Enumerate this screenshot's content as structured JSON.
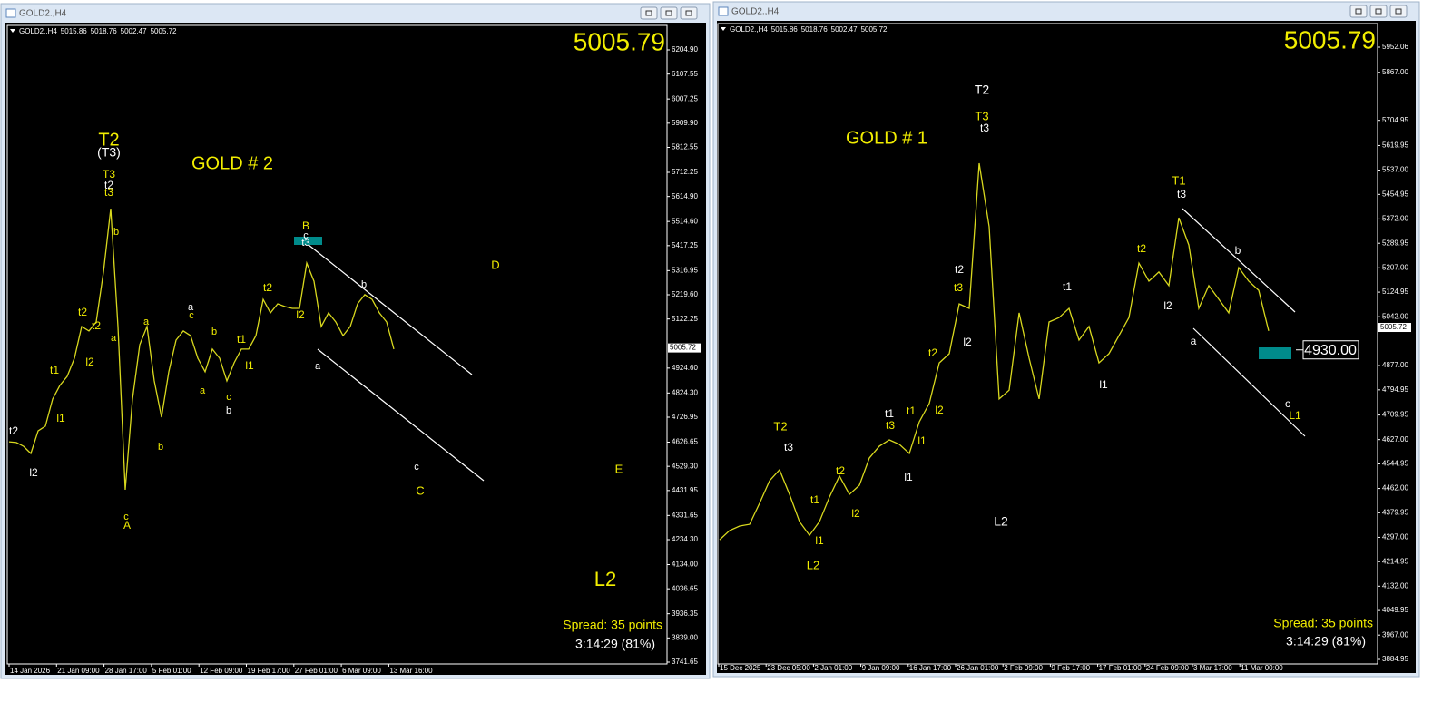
{
  "chart_data": [
    {
      "type": "line",
      "window_title": "GOLD2.,H4",
      "symbol": "GOLD2.,H4",
      "ohlc": [
        5015.86,
        5018.76,
        5002.47,
        5005.72
      ],
      "price": 5005.79,
      "price_tag": 5005.72,
      "spread": "Spread: 35 points",
      "timer": "3:14:29 (81%)",
      "color": "#d8d81e",
      "ylim": [
        3734.4,
        6303.4
      ],
      "yticks": [
        {
          "value": 6204.9,
          "label": "6204.90"
        },
        6107.55,
        6007.25,
        {
          "value": 5909.9,
          "label": "5909.90"
        },
        5812.55,
        5712.25,
        {
          "value": 5614.9,
          "label": "5614.90"
        },
        {
          "value": 5514.6,
          "label": "5514.60"
        },
        5417.25,
        5316.95,
        {
          "value": 5219.6,
          "label": "5219.60"
        },
        5122.25,
        {
          "value": 4924.6,
          "label": "4924.60"
        },
        {
          "value": 4824.3,
          "label": "4824.30"
        },
        4726.95,
        4626.65,
        {
          "value": 4529.3,
          "label": "4529.30"
        },
        4431.95,
        4331.65,
        {
          "value": 4234.3,
          "label": "4234.30"
        },
        {
          "value": 4134,
          "label": "4134.00"
        },
        4036.65,
        3936.35,
        {
          "value": 3839,
          "label": "3839.00"
        },
        3741.65
      ],
      "x_labels": [
        "14 Jan 2026",
        "21 Jan 09:00",
        "28 Jan 17:00",
        "5 Feb 01:00",
        "12 Feb 09:00",
        "19 Feb 17:00",
        "27 Feb 01:00",
        "6 Mar 09:00",
        "13 Mar 16:00"
      ],
      "values": [
        4628,
        4625,
        4610,
        4581,
        4672,
        4691,
        4800,
        4855,
        4891,
        4964,
        5092,
        5074,
        5110,
        5311,
        5566,
        5092,
        4435,
        4800,
        5019,
        5092,
        4873,
        4727,
        4910,
        5037,
        5074,
        5055,
        4964,
        4910,
        5001,
        4964,
        4873,
        4946,
        5001,
        5001,
        5055,
        5201,
        5147,
        5183,
        5172,
        5165,
        5165,
        5347,
        5274,
        5092,
        5147,
        5110,
        5055,
        5092,
        5183,
        5220,
        5201,
        5147,
        5110,
        5001
      ],
      "annotations": [
        "T2",
        "(T3)",
        "GOLD # 2",
        "T3",
        "t2",
        "t3",
        "b",
        "a",
        "t2",
        "t2",
        "l2",
        "t1",
        "l1",
        "t2",
        "l2",
        "c",
        "A",
        "b",
        "a",
        "a",
        "c",
        "b",
        "a",
        "c",
        "b",
        "t1",
        "l1",
        "t2",
        "l2",
        "B",
        "c",
        "t3",
        "b",
        "a",
        "c",
        "C",
        "D",
        "E",
        "L2"
      ]
    },
    {
      "type": "line",
      "window_title": "GOLD2.,H4",
      "symbol": "GOLD2.,H4",
      "ohlc": [
        5015.86,
        5018.76,
        5002.47,
        5005.72
      ],
      "price": 5005.79,
      "price_tag": 5005.72,
      "spread": "Spread: 35 points",
      "timer": "3:14:29 (81%)",
      "color": "#d8d81e",
      "level": {
        "value": 4930,
        "label": "4930.00"
      },
      "ylim": [
        3869.6,
        6031.7
      ],
      "yticks": [
        5952.06,
        {
          "value": 5867,
          "label": "5867.00"
        },
        5704.95,
        5619.95,
        {
          "value": 5537,
          "label": "5537.00"
        },
        5454.95,
        {
          "value": 5372,
          "label": "5372.00"
        },
        5289.95,
        {
          "value": 5207,
          "label": "5207.00"
        },
        5124.95,
        {
          "value": 5042,
          "label": "5042.00"
        },
        {
          "value": 4877,
          "label": "4877.00"
        },
        4794.95,
        4709.95,
        {
          "value": 4627,
          "label": "4627.00"
        },
        4544.95,
        {
          "value": 4462,
          "label": "4462.00"
        },
        4379.95,
        {
          "value": 4297,
          "label": "4297.00"
        },
        4214.95,
        {
          "value": 4132,
          "label": "4132.00"
        },
        4049.95,
        {
          "value": 3967,
          "label": "3967.00"
        },
        3884.95
      ],
      "x_labels": [
        "15 Dec 2025",
        "23 Dec 05:00",
        "2 Jan 01:00",
        "9 Jan 09:00",
        "16 Jan 17:00",
        "26 Jan 01:00",
        "2 Feb 09:00",
        "9 Feb 17:00",
        "17 Feb 01:00",
        "24 Feb 09:00",
        "3 Mar 17:00",
        "11 Mar 00:00"
      ],
      "values": [
        4289,
        4320,
        4335,
        4341,
        4412,
        4488,
        4525,
        4442,
        4350,
        4304,
        4350,
        4433,
        4504,
        4442,
        4473,
        4565,
        4605,
        4626,
        4611,
        4580,
        4687,
        4749,
        4886,
        4917,
        5085,
        5070,
        5560,
        5346,
        4764,
        4794,
        5055,
        4902,
        4764,
        5024,
        5039,
        5070,
        4963,
        5009,
        4886,
        4917,
        4978,
        5039,
        5223,
        5162,
        5193,
        5147,
        5376,
        5284,
        5070,
        5147,
        5101,
        5055,
        5208,
        5162,
        5131,
        4994
      ],
      "annotations": [
        "T2",
        "T3",
        "t3",
        "GOLD # 1",
        "T1",
        "t3",
        "t2",
        "l2",
        "b",
        "a",
        "c",
        "L1",
        "t1",
        "l1",
        "L2",
        "t2",
        "t3",
        "l2",
        "t2",
        "l2",
        "t1",
        "t3",
        "t1",
        "l1",
        "l1",
        "T2",
        "t3",
        "t2",
        "t1",
        "l2",
        "l1",
        "L2"
      ]
    }
  ]
}
